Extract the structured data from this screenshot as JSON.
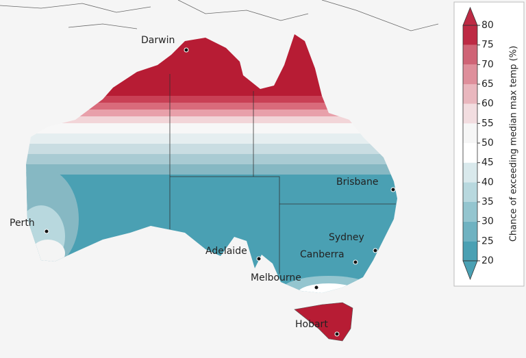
{
  "map": {
    "cities": [
      {
        "name": "Darwin"
      },
      {
        "name": "Perth"
      },
      {
        "name": "Adelaide"
      },
      {
        "name": "Brisbane"
      },
      {
        "name": "Sydney"
      },
      {
        "name": "Canberra"
      },
      {
        "name": "Melbourne"
      },
      {
        "name": "Hobart"
      }
    ],
    "colorbar": {
      "label": "Chance of exceeding median max temp (%)",
      "ticks": [
        20,
        25,
        30,
        35,
        40,
        45,
        50,
        55,
        60,
        65,
        70,
        75,
        80
      ],
      "colors": [
        "#4aa0b3",
        "#6fb2c1",
        "#94c5cf",
        "#b8d8de",
        "#d9e9ec",
        "#ffffff",
        "#f6f6f6",
        "#f2dde0",
        "#e9b7be",
        "#de8f9b",
        "#cf6476",
        "#bd2a44"
      ]
    }
  }
}
